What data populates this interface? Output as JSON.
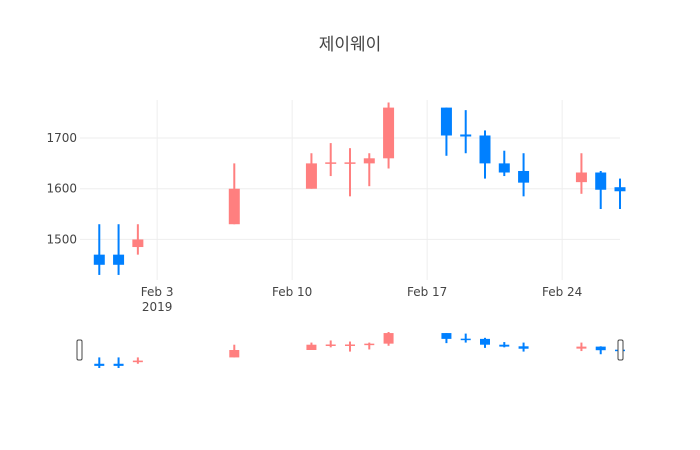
{
  "chart_data": {
    "type": "candlestick",
    "title": "제이웨이",
    "xlabel": "",
    "ylabel": "",
    "x_ticks": [
      {
        "date": "2019-02-03",
        "label": "Feb 3",
        "sublabel": "2019"
      },
      {
        "date": "2019-02-10",
        "label": "Feb 10",
        "sublabel": ""
      },
      {
        "date": "2019-02-17",
        "label": "Feb 17",
        "sublabel": ""
      },
      {
        "date": "2019-02-24",
        "label": "Feb 24",
        "sublabel": ""
      }
    ],
    "y_ticks": [
      1500,
      1600,
      1700
    ],
    "xlim": [
      "2019-01-30",
      "2019-02-27"
    ],
    "ylim": [
      1420,
      1775
    ],
    "grid": true,
    "rangeslider": true,
    "increasing_color": "#FF7F7F",
    "decreasing_color": "#0080FF",
    "candles": [
      {
        "date": "2019-01-31",
        "open": 1470,
        "high": 1530,
        "low": 1430,
        "close": 1450
      },
      {
        "date": "2019-02-01",
        "open": 1470,
        "high": 1530,
        "low": 1430,
        "close": 1450
      },
      {
        "date": "2019-02-02",
        "open": 1485,
        "high": 1530,
        "low": 1470,
        "close": 1500
      },
      {
        "date": "2019-02-07",
        "open": 1530,
        "high": 1650,
        "low": 1530,
        "close": 1600
      },
      {
        "date": "2019-02-11",
        "open": 1600,
        "high": 1670,
        "low": 1600,
        "close": 1650
      },
      {
        "date": "2019-02-12",
        "open": 1650,
        "high": 1690,
        "low": 1625,
        "close": 1652
      },
      {
        "date": "2019-02-13",
        "open": 1650,
        "high": 1680,
        "low": 1585,
        "close": 1652
      },
      {
        "date": "2019-02-14",
        "open": 1650,
        "high": 1670,
        "low": 1605,
        "close": 1660
      },
      {
        "date": "2019-02-15",
        "open": 1660,
        "high": 1770,
        "low": 1640,
        "close": 1760
      },
      {
        "date": "2019-02-18",
        "open": 1760,
        "high": 1760,
        "low": 1665,
        "close": 1705
      },
      {
        "date": "2019-02-19",
        "open": 1707,
        "high": 1755,
        "low": 1670,
        "close": 1703
      },
      {
        "date": "2019-02-20",
        "open": 1705,
        "high": 1715,
        "low": 1620,
        "close": 1650
      },
      {
        "date": "2019-02-21",
        "open": 1650,
        "high": 1675,
        "low": 1625,
        "close": 1632
      },
      {
        "date": "2019-02-22",
        "open": 1635,
        "high": 1670,
        "low": 1585,
        "close": 1612
      },
      {
        "date": "2019-02-25",
        "open": 1613,
        "high": 1670,
        "low": 1590,
        "close": 1632
      },
      {
        "date": "2019-02-26",
        "open": 1632,
        "high": 1635,
        "low": 1560,
        "close": 1598
      },
      {
        "date": "2019-02-27",
        "open": 1603,
        "high": 1620,
        "low": 1560,
        "close": 1595
      }
    ]
  }
}
